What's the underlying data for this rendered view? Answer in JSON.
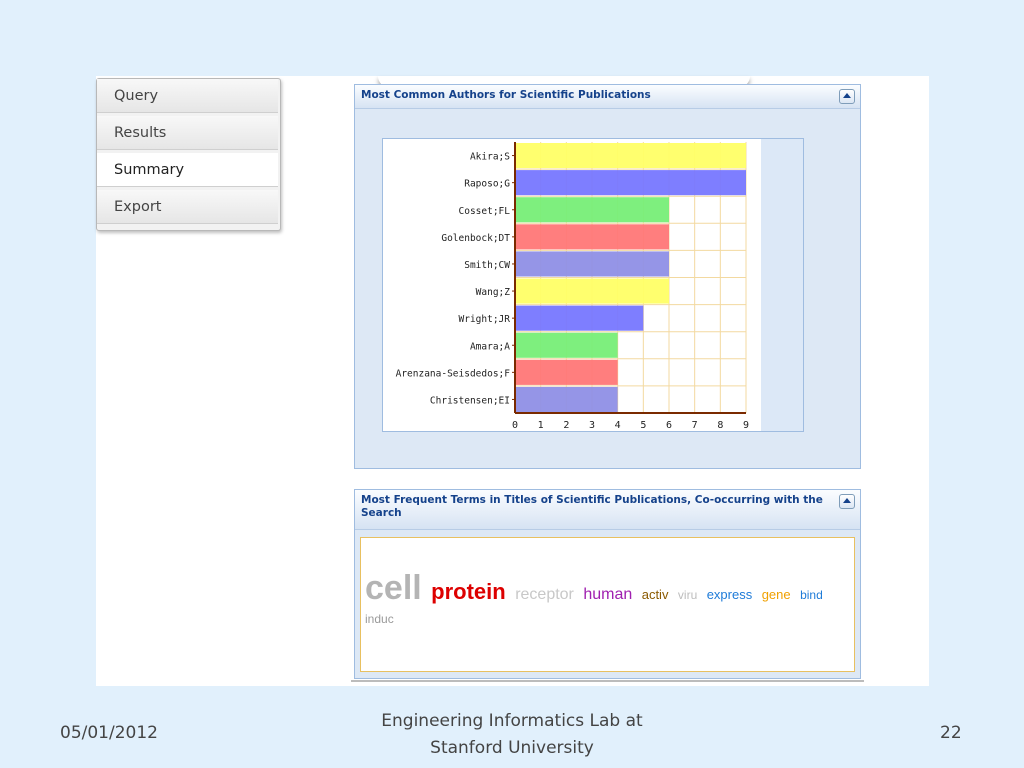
{
  "nav": {
    "items": [
      {
        "label": "Query",
        "active": false
      },
      {
        "label": "Results",
        "active": false
      },
      {
        "label": "Summary",
        "active": true
      },
      {
        "label": "Export",
        "active": false
      }
    ]
  },
  "authors_panel": {
    "title": "Most Common Authors for Scientific Publications"
  },
  "chart_data": {
    "type": "bar",
    "orientation": "horizontal",
    "categories": [
      "Akira;S",
      "Raposo;G",
      "Cosset;FL",
      "Golenbock;DT",
      "Smith;CW",
      "Wang;Z",
      "Wright;JR",
      "Amara;A",
      "Arenzana-Seisdedos;F",
      "Christensen;EI"
    ],
    "values": [
      9,
      9,
      6,
      6,
      6,
      6,
      5,
      4,
      4,
      4
    ],
    "colors": [
      "#ffff66",
      "#7777ff",
      "#77ee77",
      "#ff7777",
      "#8f8fe6",
      "#ffff66",
      "#7777ff",
      "#77ee77",
      "#ff7777",
      "#8f8fe6"
    ],
    "xticks": [
      "0",
      "1",
      "2",
      "3",
      "4",
      "5",
      "6",
      "7",
      "8",
      "9"
    ],
    "xlim": [
      0,
      9
    ],
    "grid": true
  },
  "terms_panel": {
    "title": "Most Frequent Terms in Titles of Scientific Publications, Co-occurring with the Search",
    "terms": [
      {
        "text": "cell",
        "color": "#b4b4b4",
        "weight": "bold",
        "size": 34
      },
      {
        "text": "protein",
        "color": "#dd0000",
        "weight": "bold",
        "size": 22
      },
      {
        "text": "receptor",
        "color": "#c8c8c8",
        "weight": "normal",
        "size": 16
      },
      {
        "text": "human",
        "color": "#a020b0",
        "weight": "normal",
        "size": 16
      },
      {
        "text": "activ",
        "color": "#8b5a00",
        "weight": "normal",
        "size": 13
      },
      {
        "text": "viru",
        "color": "#bdbdbd",
        "weight": "normal",
        "size": 12
      },
      {
        "text": "express",
        "color": "#1e7bd8",
        "weight": "normal",
        "size": 13
      },
      {
        "text": "gene",
        "color": "#f0a000",
        "weight": "normal",
        "size": 13
      },
      {
        "text": "bind",
        "color": "#1e7bd8",
        "weight": "normal",
        "size": 12
      },
      {
        "text": "induc",
        "color": "#9a9a9a",
        "weight": "normal",
        "size": 12
      }
    ]
  },
  "footer": {
    "date": "05/01/2012",
    "center_line1": "Engineering Informatics Lab at",
    "center_line2": "Stanford University",
    "page_number": "22"
  }
}
